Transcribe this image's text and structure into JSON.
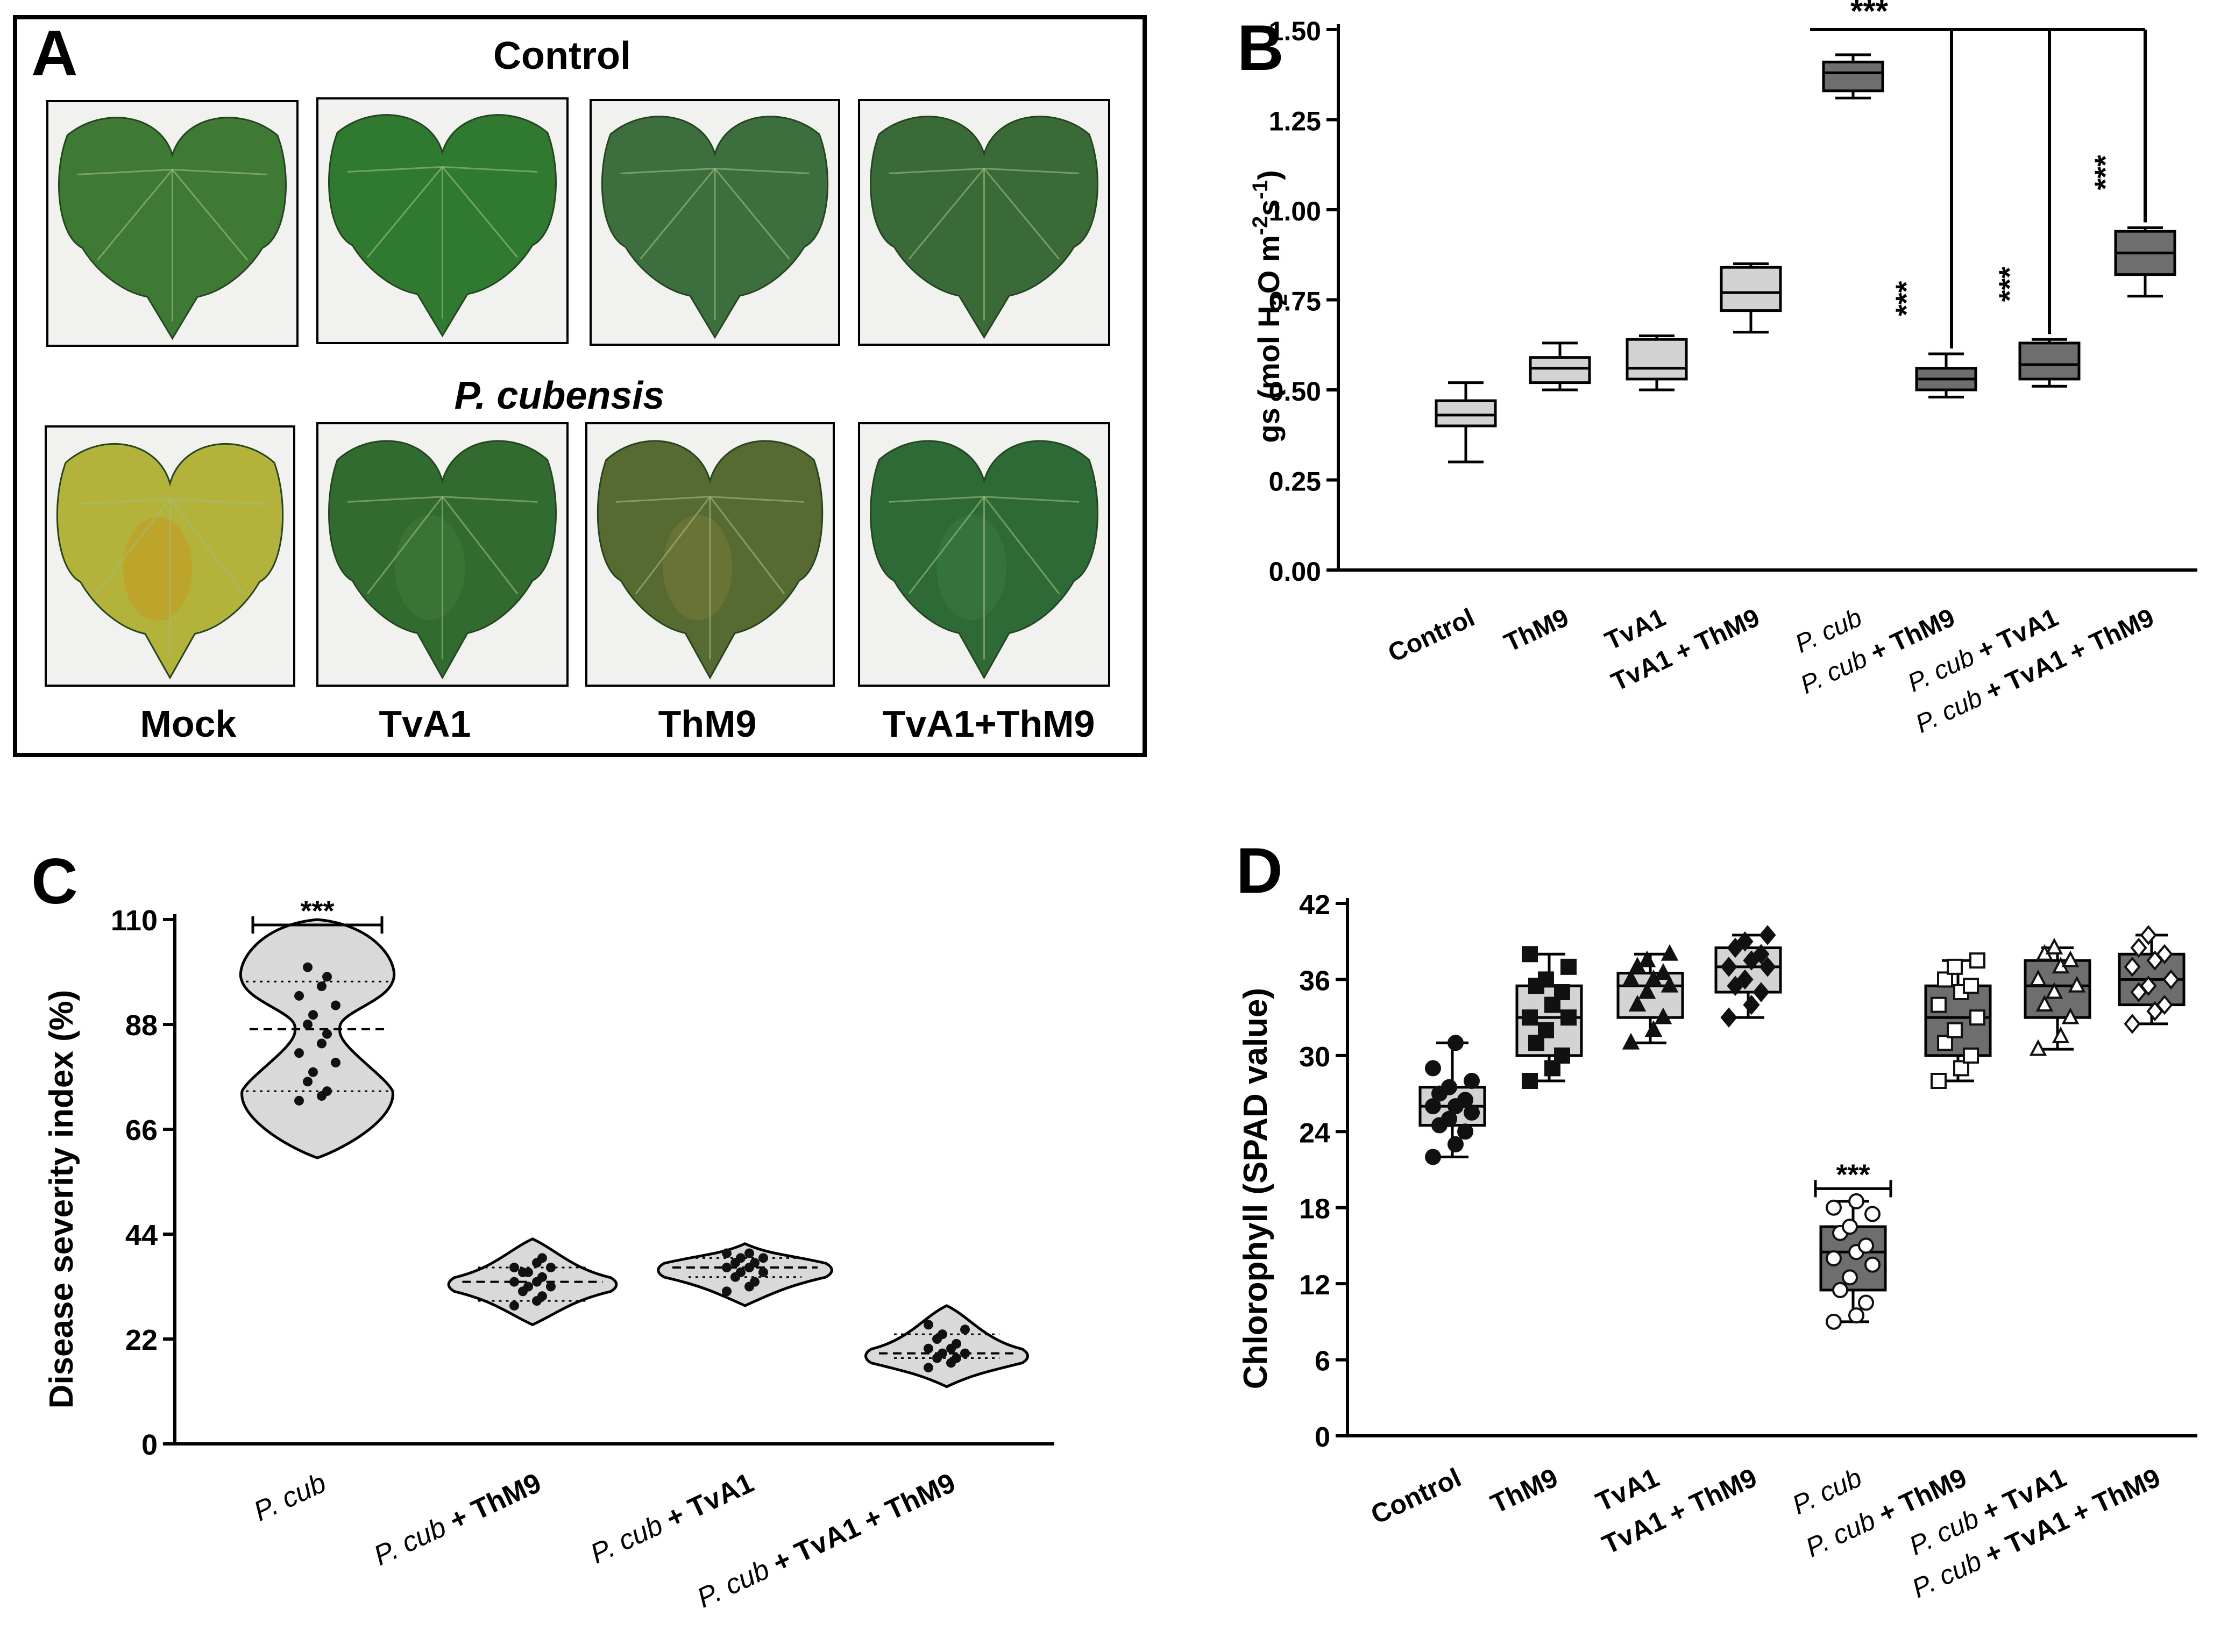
{
  "panel_a": {
    "letter": "A",
    "top_label": "Control",
    "middle_label": "P. cubensis",
    "col_labels": [
      "Mock",
      "TvA1",
      "ThM9",
      "TvA1+ThM9"
    ],
    "leaf_colors": {
      "control": [
        "#3f7a35",
        "#2f7a30",
        "#3d6f3e",
        "#3a6a38"
      ],
      "infected": [
        "#b3b23a",
        "#326b30",
        "#566a32",
        "#2e6a35"
      ],
      "infected_accent": [
        "#c49a1f",
        "#3f7b3a",
        "#7a7a3a",
        "#3a7a40"
      ]
    }
  },
  "chart_data": [
    {
      "panel": "B",
      "type": "box",
      "ylabel_parts": [
        "gs (mol H",
        "2",
        "O m",
        "-2",
        "s",
        "-1",
        ")"
      ],
      "ylim": [
        0,
        1.5
      ],
      "yticks": [
        "0.00",
        "0.25",
        "0.50",
        "0.75",
        "1.00",
        "1.25",
        "1.50"
      ],
      "categories": [
        {
          "pre": "",
          "mid": "Control",
          "post": ""
        },
        {
          "pre": "",
          "mid": "ThM9",
          "post": ""
        },
        {
          "pre": "",
          "mid": "TvA1",
          "post": ""
        },
        {
          "pre": "",
          "mid": "TvA1 + ThM9",
          "post": ""
        },
        {
          "pre": "P. cub",
          "mid": "",
          "post": ""
        },
        {
          "pre": "P. cub",
          "mid": " + ThM9",
          "post": ""
        },
        {
          "pre": "P. cub",
          "mid": " + TvA1",
          "post": ""
        },
        {
          "pre": "P. cub",
          "mid": " + TvA1 + ThM9",
          "post": ""
        }
      ],
      "boxes": [
        {
          "min": 0.3,
          "q1": 0.4,
          "median": 0.43,
          "q3": 0.47,
          "max": 0.52,
          "color": "#d3d3d3"
        },
        {
          "min": 0.5,
          "q1": 0.52,
          "median": 0.56,
          "q3": 0.59,
          "max": 0.63,
          "color": "#d3d3d3"
        },
        {
          "min": 0.5,
          "q1": 0.53,
          "median": 0.56,
          "q3": 0.64,
          "max": 0.65,
          "color": "#d3d3d3"
        },
        {
          "min": 0.66,
          "q1": 0.72,
          "median": 0.77,
          "q3": 0.84,
          "max": 0.85,
          "color": "#d3d3d3"
        },
        {
          "min": 1.31,
          "q1": 1.33,
          "median": 1.38,
          "q3": 1.41,
          "max": 1.43,
          "color": "#6e6e6e"
        },
        {
          "min": 0.48,
          "q1": 0.5,
          "median": 0.53,
          "q3": 0.56,
          "max": 0.6,
          "color": "#6e6e6e"
        },
        {
          "min": 0.51,
          "q1": 0.53,
          "median": 0.57,
          "q3": 0.63,
          "max": 0.64,
          "color": "#6e6e6e"
        },
        {
          "min": 0.76,
          "q1": 0.82,
          "median": 0.88,
          "q3": 0.94,
          "max": 0.95,
          "color": "#6e6e6e"
        }
      ],
      "significance": [
        "***",
        "***",
        "***",
        "***"
      ]
    },
    {
      "panel": "C",
      "type": "violin",
      "ylabel": "Disease severity index (%)",
      "ylim": [
        0,
        110
      ],
      "yticks": [
        "0",
        "22",
        "44",
        "66",
        "88",
        "110"
      ],
      "categories": [
        {
          "pre": "P. cub",
          "mid": ""
        },
        {
          "pre": "P. cub",
          "mid": " + ThM9"
        },
        {
          "pre": "P. cub",
          "mid": " + TvA1"
        },
        {
          "pre": "P. cub",
          "mid": " + TvA1 + ThM9"
        }
      ],
      "violins": [
        {
          "min": 60,
          "max": 110,
          "median": 87,
          "q1": 74,
          "q3": 97,
          "points": [
            72,
            73,
            74,
            76,
            78,
            80,
            82,
            84,
            86,
            88,
            90,
            92,
            94,
            96,
            98,
            100
          ]
        },
        {
          "min": 25,
          "max": 43,
          "median": 34,
          "q1": 30,
          "q3": 37,
          "points": [
            29,
            30,
            31,
            32,
            33,
            33,
            34,
            34,
            35,
            36,
            36,
            37,
            37,
            38,
            39
          ]
        },
        {
          "min": 29,
          "max": 42,
          "median": 37,
          "q1": 35,
          "q3": 39,
          "points": [
            32,
            33,
            34,
            35,
            36,
            36,
            37,
            37,
            38,
            38,
            39,
            39,
            40,
            40
          ]
        },
        {
          "min": 12,
          "max": 29,
          "median": 19,
          "q1": 18,
          "q3": 23,
          "points": [
            16,
            17,
            18,
            18,
            19,
            19,
            20,
            20,
            21,
            22,
            23,
            24,
            25
          ]
        }
      ],
      "significance": "***"
    },
    {
      "panel": "D",
      "type": "box",
      "ylabel": "Chlorophyll (SPAD value)",
      "ylim": [
        0,
        42
      ],
      "yticks": [
        "0",
        "6",
        "12",
        "18",
        "24",
        "30",
        "36",
        "42"
      ],
      "categories": [
        {
          "pre": "",
          "mid": "Control"
        },
        {
          "pre": "",
          "mid": "ThM9"
        },
        {
          "pre": "",
          "mid": "TvA1"
        },
        {
          "pre": "",
          "mid": "TvA1 + ThM9"
        },
        {
          "pre": "P. cub",
          "mid": ""
        },
        {
          "pre": "P. cub",
          "mid": " + ThM9"
        },
        {
          "pre": "P. cub",
          "mid": " + TvA1"
        },
        {
          "pre": "P. cub",
          "mid": " + TvA1 + ThM9"
        }
      ],
      "boxes": [
        {
          "min": 22,
          "q1": 24.5,
          "median": 26,
          "q3": 27.5,
          "max": 31,
          "color": "#d3d3d3",
          "marker": "circle",
          "fill": "#111",
          "points": [
            22,
            23,
            24,
            24.5,
            25,
            25.5,
            26,
            26,
            26.5,
            27,
            27.5,
            28,
            29,
            31
          ]
        },
        {
          "min": 28,
          "q1": 30,
          "median": 33,
          "q3": 35.5,
          "max": 38,
          "color": "#d3d3d3",
          "marker": "square",
          "fill": "#111",
          "points": [
            28,
            29,
            30,
            31,
            32,
            33,
            33,
            34,
            35,
            35.5,
            36,
            37,
            38
          ]
        },
        {
          "min": 31,
          "q1": 33,
          "median": 35.5,
          "q3": 36.5,
          "max": 38,
          "color": "#d3d3d3",
          "marker": "triangle",
          "fill": "#111",
          "points": [
            31,
            32,
            33,
            34,
            35,
            35.5,
            36,
            36,
            36.5,
            37,
            37.5,
            38
          ]
        },
        {
          "min": 33,
          "q1": 35,
          "median": 37,
          "q3": 38.5,
          "max": 39.5,
          "color": "#d3d3d3",
          "marker": "diamond",
          "fill": "#111",
          "points": [
            33,
            34,
            35,
            35.5,
            36,
            37,
            37,
            37.5,
            38,
            38.5,
            39,
            39.5
          ]
        },
        {
          "min": 9,
          "q1": 11.5,
          "median": 14.5,
          "q3": 16.5,
          "max": 18.5,
          "color": "#6e6e6e",
          "marker": "circle",
          "fill": "#fff",
          "points": [
            9,
            9.5,
            10.5,
            11.5,
            12.5,
            13.5,
            14,
            14.5,
            15,
            16,
            16.5,
            17.5,
            18,
            18.5
          ]
        },
        {
          "min": 28,
          "q1": 30,
          "median": 33,
          "q3": 35.5,
          "max": 37.5,
          "color": "#6e6e6e",
          "marker": "square",
          "fill": "#fff",
          "points": [
            28,
            29,
            30,
            31,
            32,
            33,
            34,
            35,
            35.5,
            36,
            37,
            37.5
          ]
        },
        {
          "min": 30.5,
          "q1": 33,
          "median": 35.5,
          "q3": 37.5,
          "max": 38.5,
          "color": "#6e6e6e",
          "marker": "triangle",
          "fill": "#fff",
          "points": [
            30.5,
            31.5,
            33,
            34,
            35,
            35.5,
            36,
            37,
            37.5,
            38,
            38.5
          ]
        },
        {
          "min": 32.5,
          "q1": 34,
          "median": 36,
          "q3": 38,
          "max": 39.5,
          "color": "#6e6e6e",
          "marker": "diamond",
          "fill": "#fff",
          "points": [
            32.5,
            33.5,
            34,
            35,
            35.5,
            36,
            37,
            37.5,
            38,
            38.5,
            39.5
          ]
        }
      ],
      "significance": "***"
    }
  ]
}
